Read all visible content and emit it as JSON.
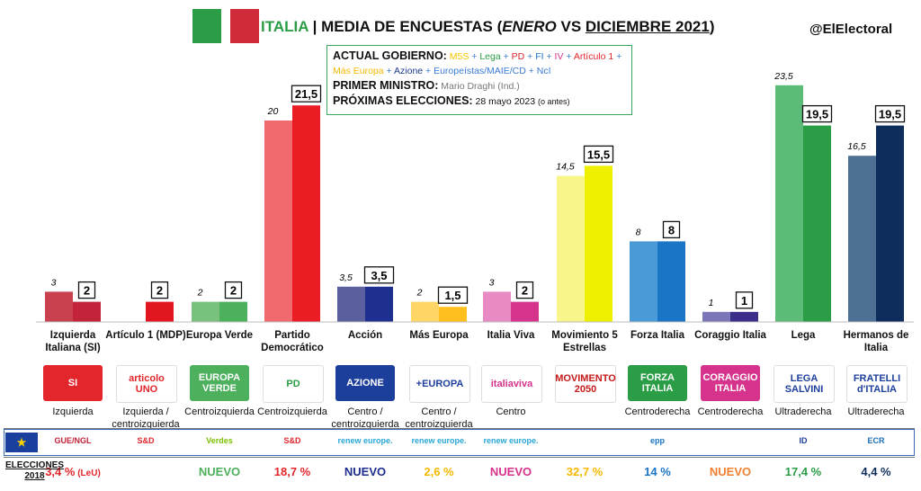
{
  "header": {
    "country": "ITALIA",
    "title_pre": "| MEDIA DE ENCUESTAS (",
    "title_month1": "ENERO",
    "title_vs": " VS ",
    "title_month2": "DICIEMBRE 2021",
    "title_post": ")",
    "handle": "@ElElectoral"
  },
  "infobox": {
    "gov_label": "ACTUAL GOBIERNO:",
    "gov_parties": [
      {
        "text": "M5S",
        "color": "#f5c400"
      },
      {
        "text": " + ",
        "color": "#3a7bd5"
      },
      {
        "text": "Lega",
        "color": "#2a9d46"
      },
      {
        "text": " + ",
        "color": "#3a7bd5"
      },
      {
        "text": "PD",
        "color": "#e2262b"
      },
      {
        "text": " + ",
        "color": "#3a7bd5"
      },
      {
        "text": "FI",
        "color": "#1b75c7"
      },
      {
        "text": " + ",
        "color": "#3a7bd5"
      },
      {
        "text": "IV",
        "color": "#d6338c"
      },
      {
        "text": " + ",
        "color": "#3a7bd5"
      },
      {
        "text": "Artículo 1",
        "color": "#e2262b"
      },
      {
        "text": " + ",
        "color": "#3a7bd5"
      }
    ],
    "gov_parties_line2": [
      {
        "text": "Más Europa",
        "color": "#f5b800"
      },
      {
        "text": " + ",
        "color": "#3a7bd5"
      },
      {
        "text": "Azione",
        "color": "#1a3a8c"
      },
      {
        "text": " + Europeístas/MAIE/CD + NcI",
        "color": "#3a7bd5"
      }
    ],
    "pm_label": "PRIMER MINISTRO:",
    "pm_value": "Mario Draghi (Ind.)",
    "elections_label": "PRÓXIMAS ELECCIONES:",
    "elections_value": "28 mayo 2023",
    "elections_note": "(o antes)"
  },
  "chart_data": {
    "type": "bar",
    "categories": [
      "Izquierda Italiana (SI)",
      "Artículo 1 (MDP)",
      "Europa Verde",
      "Partido Democrático",
      "Acción",
      "Más Europa",
      "Italia Viva",
      "Movimiento 5 Estrellas",
      "Forza Italia",
      "Coraggio Italia",
      "Lega",
      "Hermanos de Italia"
    ],
    "series": [
      {
        "values": [
          3,
          null,
          2,
          20,
          3.5,
          2,
          3,
          14.5,
          8,
          1,
          23.5,
          16.5
        ],
        "labels": [
          "3",
          "",
          "2",
          "20",
          "3,5",
          "2",
          "3",
          "14,5",
          "8",
          "1",
          "23,5",
          "16,5"
        ],
        "colors": [
          "#c9404f",
          "#e84a4a",
          "#78c27e",
          "#f06a6e",
          "#5b5f9e",
          "#ffd666",
          "#e88ac4",
          "#f8f58a",
          "#4a9ad8",
          "#7b76b8",
          "#5dbb78",
          "#4f7095"
        ]
      },
      {
        "values": [
          2,
          2,
          2,
          21.5,
          3.5,
          1.5,
          2,
          15.5,
          8,
          1,
          19.5,
          19.5
        ],
        "labels": [
          "2",
          "2",
          "2",
          "21,5",
          "3,5",
          "1,5",
          "2",
          "15,5",
          "8",
          "1",
          "19,5",
          "19,5"
        ],
        "colors": [
          "#c2233a",
          "#e2161e",
          "#4cb05c",
          "#ea1c24",
          "#1d2f8f",
          "#ffbf1e",
          "#d6338c",
          "#eef000",
          "#1b75c7",
          "#3b2d8a",
          "#2a9d46",
          "#0f2d5c"
        ]
      }
    ]
  },
  "parties": [
    {
      "name": "Izquierda Italiana (SI)",
      "logo": "SI",
      "logo_bg": "#e2262b",
      "logo_fg": "#fff",
      "ideology": "Izquierda",
      "eu": "GUE/NGL",
      "eu_color": "#c2233a",
      "elec": "3,4 %",
      "elec_note": "(LeU)",
      "elec_color": "#e2262b"
    },
    {
      "name": "Artículo 1 (MDP)",
      "logo": "articolo UNO",
      "logo_bg": "#ffffff",
      "logo_fg": "#e2262b",
      "ideology": "Izquierda / centroizquierda",
      "eu": "S&D",
      "eu_color": "#e2262b",
      "elec": "",
      "elec_note": "",
      "elec_color": "#e2262b"
    },
    {
      "name": "Europa Verde",
      "logo": "EUROPA VERDE",
      "logo_bg": "#4cb05c",
      "logo_fg": "#fff",
      "ideology": "Centroizquierda",
      "eu": "Verdes",
      "eu_color": "#7cc000",
      "elec": "NUEVO",
      "elec_note": "",
      "elec_color": "#4cb05c"
    },
    {
      "name": "Partido Democrático",
      "logo": "PD",
      "logo_bg": "#ffffff",
      "logo_fg": "#2a9d46",
      "ideology": "Centroizquierda",
      "eu": "S&D",
      "eu_color": "#e2262b",
      "elec": "18,7 %",
      "elec_note": "",
      "elec_color": "#e2262b"
    },
    {
      "name": "Acción",
      "logo": "AZIONE",
      "logo_bg": "#1d3f9c",
      "logo_fg": "#fff",
      "ideology": "Centro / centroizquierda",
      "eu": "renew europe.",
      "eu_color": "#2aa7d8",
      "elec": "NUEVO",
      "elec_note": "",
      "elec_color": "#1d2f8f"
    },
    {
      "name": "Más Europa",
      "logo": "+EUROPA",
      "logo_bg": "#ffffff",
      "logo_fg": "#1d3f9c",
      "ideology": "Centro / centroizquierda",
      "eu": "renew europe.",
      "eu_color": "#2aa7d8",
      "elec": "2,6 %",
      "elec_note": "",
      "elec_color": "#f5b800"
    },
    {
      "name": "Italia Viva",
      "logo": "italiaviva",
      "logo_bg": "#ffffff",
      "logo_fg": "#d6338c",
      "ideology": "Centro",
      "eu": "renew europe.",
      "eu_color": "#2aa7d8",
      "elec": "NUEVO",
      "elec_note": "",
      "elec_color": "#d6338c"
    },
    {
      "name": "Movimiento 5 Estrellas",
      "logo": "MOVIMENTO 2050",
      "logo_bg": "#ffffff",
      "logo_fg": "#c41a1a",
      "ideology": "",
      "eu": "",
      "eu_color": "#000",
      "elec": "32,7 %",
      "elec_note": "",
      "elec_color": "#f5b800"
    },
    {
      "name": "Forza Italia",
      "logo": "FORZA ITALIA",
      "logo_bg": "#2a9d46",
      "logo_fg": "#fff",
      "ideology": "Centroderecha",
      "eu": "epp",
      "eu_color": "#1b75c7",
      "elec": "14 %",
      "elec_note": "",
      "elec_color": "#1b75c7"
    },
    {
      "name": "Coraggio Italia",
      "logo": "CORAGGIO ITALIA",
      "logo_bg": "#d6338c",
      "logo_fg": "#fff",
      "ideology": "Centroderecha",
      "eu": "",
      "eu_color": "#000",
      "elec": "NUEVO",
      "elec_note": "",
      "elec_color": "#f08030"
    },
    {
      "name": "Lega",
      "logo": "LEGA SALVINI",
      "logo_bg": "#ffffff",
      "logo_fg": "#1d3f9c",
      "ideology": "Ultraderecha",
      "eu": "ID",
      "eu_color": "#1d3f9c",
      "elec": "17,4 %",
      "elec_note": "",
      "elec_color": "#2a9d46"
    },
    {
      "name": "Hermanos de Italia",
      "logo": "FRATELLI d'ITALIA",
      "logo_bg": "#ffffff",
      "logo_fg": "#1d3f9c",
      "ideology": "Ultraderecha",
      "eu": "ECR",
      "eu_color": "#1b6fb8",
      "elec": "4,4 %",
      "elec_note": "",
      "elec_color": "#0f2d5c"
    }
  ],
  "footer": {
    "elections_label_line1": "ELECCIONES",
    "elections_label_line2": "2018"
  }
}
